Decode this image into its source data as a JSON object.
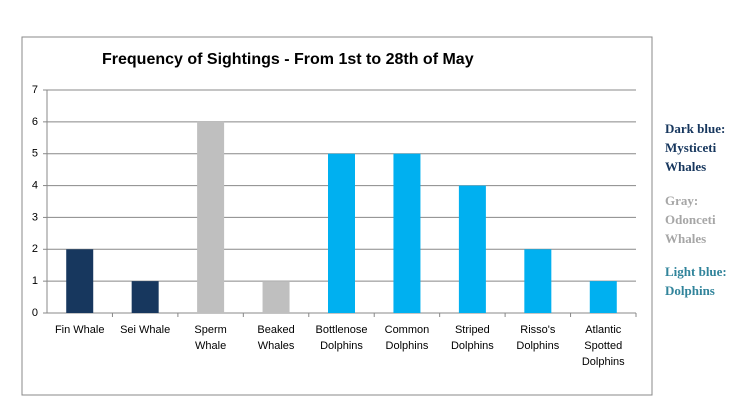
{
  "chart_data": {
    "type": "bar",
    "title": "Frequency of Sightings - From 1st to 28th of May",
    "categories": [
      "Fin Whale",
      "Sei Whale",
      "Sperm Whale",
      "Beaked Whales",
      "Bottlenose Dolphins",
      "Common Dolphins",
      "Striped Dolphins",
      "Risso's Dolphins",
      "Atlantic Spotted Dolphins"
    ],
    "values": [
      2,
      1,
      6,
      1,
      5,
      5,
      4,
      2,
      1
    ],
    "colors": [
      "#17375e",
      "#17375e",
      "#bfbfbf",
      "#bfbfbf",
      "#00b0f0",
      "#00b0f0",
      "#00b0f0",
      "#00b0f0",
      "#00b0f0"
    ],
    "ylim": [
      0,
      7
    ],
    "yticks": [
      0,
      1,
      2,
      3,
      4,
      5,
      6,
      7
    ],
    "grid": true
  },
  "notes": [
    {
      "text": "Dark blue: Mysticeti Whales",
      "color": "#17375e"
    },
    {
      "text": "Gray: Odonceti Whales",
      "color": "#a6a6a6"
    },
    {
      "text": "Light blue: Dolphins",
      "color": "#31849b"
    }
  ]
}
